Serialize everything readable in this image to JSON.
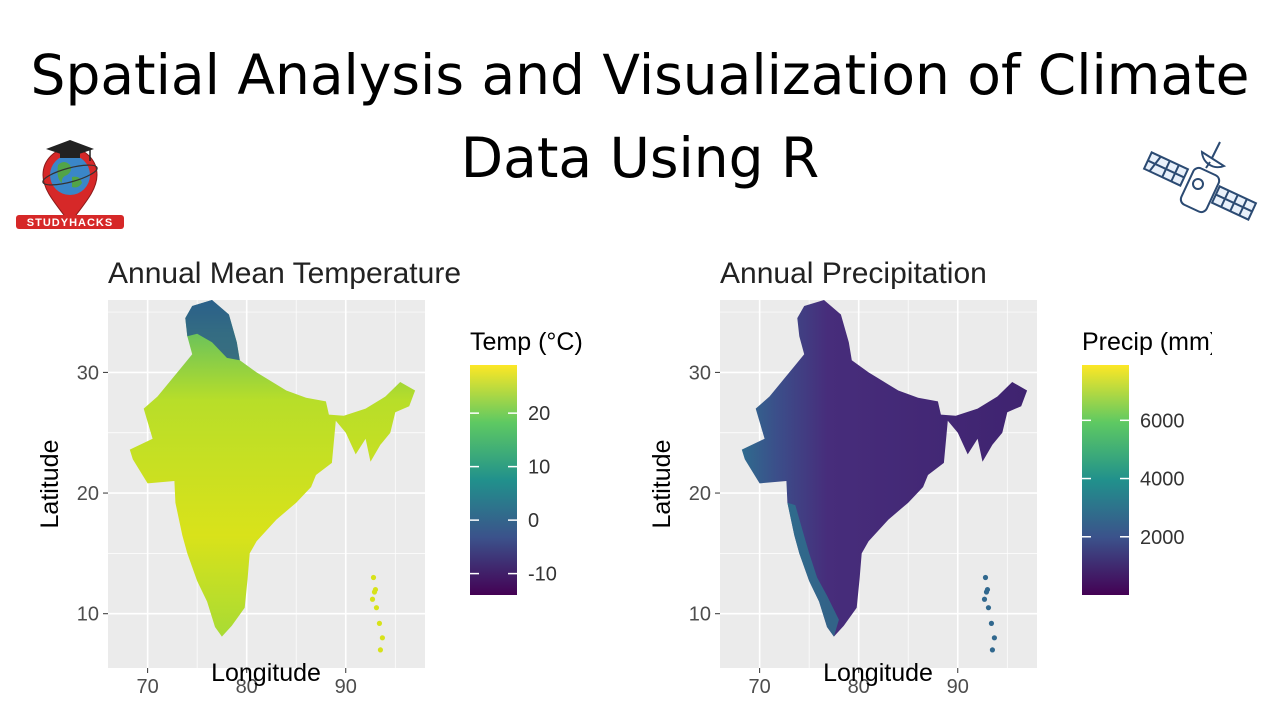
{
  "slide": {
    "title_line1": "Spatial Analysis and Visualization of Climate",
    "title_line2": "Data Using R",
    "logo_text": "STUDYHACKS",
    "logo_icon": "graduation-cap-globe-pin-icon",
    "decor_icon": "satellite-icon"
  },
  "chart_data": [
    {
      "type": "heatmap",
      "title": "Annual Mean Temperature",
      "xlabel": "Longitude",
      "ylabel": "Latitude",
      "xticks": [
        70,
        80,
        90
      ],
      "yticks": [
        10,
        20,
        30
      ],
      "xlim": [
        66,
        98
      ],
      "ylim": [
        5.5,
        36
      ],
      "grid": true,
      "legend": {
        "title": "Temp (°C)",
        "placement": "right",
        "range": [
          -14,
          29
        ],
        "ticks": [
          20,
          10,
          0,
          -10
        ],
        "colors": [
          "#440154",
          "#3b528b",
          "#21918c",
          "#5ec962",
          "#fde725"
        ]
      },
      "region": "India"
    },
    {
      "type": "heatmap",
      "title": "Annual Precipitation",
      "xlabel": "Longitude",
      "ylabel": "Latitude",
      "xticks": [
        70,
        80,
        90
      ],
      "yticks": [
        10,
        20,
        30
      ],
      "xlim": [
        66,
        98
      ],
      "ylim": [
        5.5,
        36
      ],
      "grid": true,
      "legend": {
        "title": "Precip (mm)",
        "placement": "right",
        "range": [
          0,
          7900
        ],
        "ticks": [
          6000,
          4000,
          2000
        ],
        "colors": [
          "#440154",
          "#3b528b",
          "#21918c",
          "#5ec962",
          "#fde725"
        ]
      },
      "region": "India"
    }
  ]
}
